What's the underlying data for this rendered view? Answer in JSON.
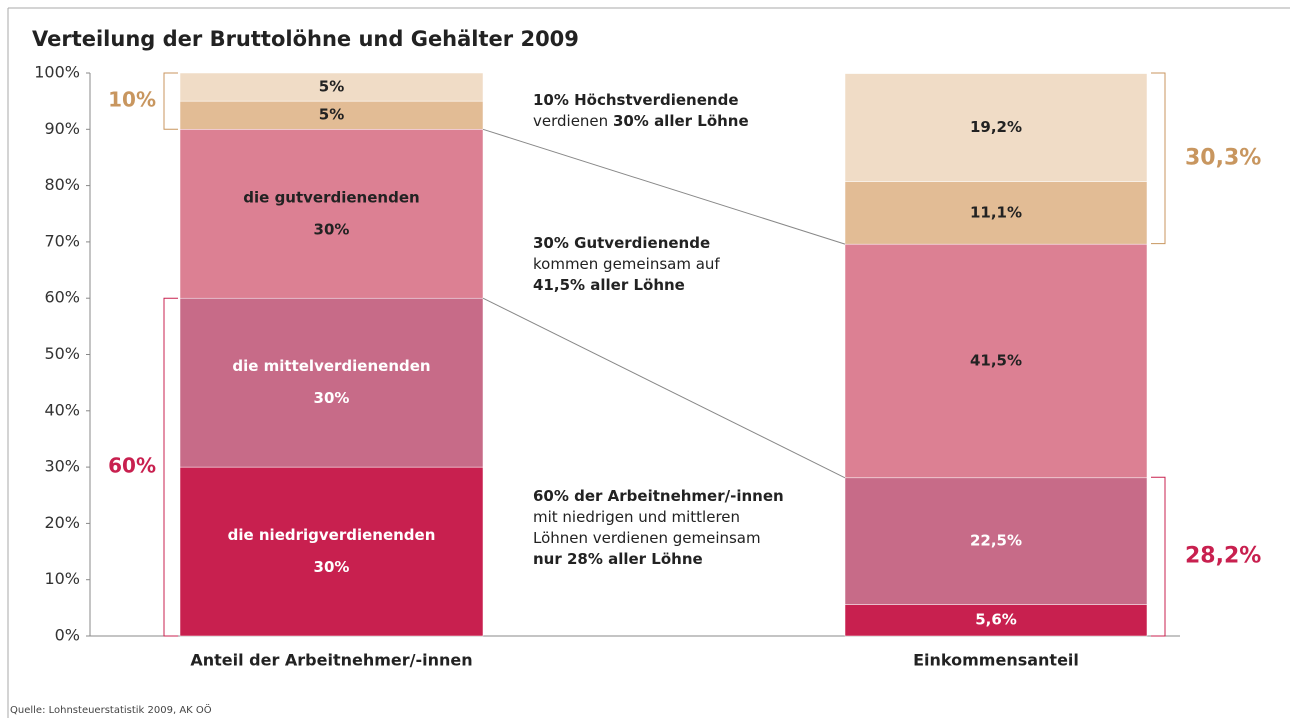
{
  "chart_data": {
    "type": "stacked-bar",
    "title": "Verteilung der Bruttolöhne und Gehälter 2009",
    "categories": [
      "Anteil der Arbeitnehmer/-innen",
      "Einkommensanteil"
    ],
    "series": [
      {
        "name": "die niedrigverdienenden",
        "color": "#c8204f",
        "label_color": "#ffffff",
        "values": [
          30,
          5.6
        ],
        "value_labels": [
          "30%",
          "5,6%"
        ]
      },
      {
        "name": "die mittelverdienenden",
        "color": "#c76b88",
        "label_color": "#ffffff",
        "values": [
          30,
          22.5
        ],
        "value_labels": [
          "30%",
          "22,5%"
        ]
      },
      {
        "name": "die gutverdienenden",
        "color": "#dc8093",
        "label_color": "#222222",
        "values": [
          30,
          41.5
        ],
        "value_labels": [
          "30%",
          "41,5%"
        ]
      },
      {
        "color": "#e2bc95",
        "label_color": "#222222",
        "values": [
          5,
          11.1
        ],
        "value_labels": [
          "5%",
          "11,1%"
        ]
      },
      {
        "color": "#f0dcc6",
        "label_color": "#222222",
        "values": [
          5,
          19.2
        ],
        "value_labels": [
          "5%",
          "19,2%"
        ]
      }
    ],
    "ylim": [
      0,
      100
    ],
    "yticks": [
      {
        "value": 0,
        "label": "0%"
      },
      {
        "value": 10,
        "label": "10%"
      },
      {
        "value": 20,
        "label": "20%"
      },
      {
        "value": 30,
        "label": "30%"
      },
      {
        "value": 40,
        "label": "40%"
      },
      {
        "value": 50,
        "label": "50%"
      },
      {
        "value": 60,
        "label": "60%"
      },
      {
        "value": 70,
        "label": "70%"
      },
      {
        "value": 80,
        "label": "80%"
      },
      {
        "value": 90,
        "label": "90%"
      },
      {
        "value": 100,
        "label": "100%"
      }
    ],
    "grid": false,
    "brackets": [
      [
        {
          "label": "10%",
          "value": 10,
          "anchor": "top",
          "color": "#c8965f"
        },
        {
          "label": "60%",
          "value": 60,
          "anchor": "bottom",
          "color": "#c8204f"
        }
      ],
      [
        {
          "label": "30,3%",
          "value": 30.3,
          "anchor": "top",
          "color": "#c8965f"
        },
        {
          "label": "28,2%",
          "value": 28.2,
          "anchor": "bottom",
          "color": "#c8204f"
        }
      ]
    ],
    "notes": [
      [
        [
          {
            "text": "10% Höchstverdienende",
            "bold": true
          }
        ],
        [
          {
            "text": "verdienen ",
            "bold": false
          },
          {
            "text": "30% aller Löhne",
            "bold": true
          }
        ]
      ],
      [
        [
          {
            "text": "30% Gutverdienende",
            "bold": true
          }
        ],
        [
          {
            "text": "kommen gemeinsam auf",
            "bold": false
          }
        ],
        [
          {
            "text": "41,5% aller Löhne",
            "bold": true
          }
        ]
      ],
      [
        [
          {
            "text": "60% der Arbeitnehmer/-innen",
            "bold": true
          }
        ],
        [
          {
            "text": "mit niedrigen und mittleren",
            "bold": false
          }
        ],
        [
          {
            "text": "Löhnen verdienen gemeinsam",
            "bold": false
          }
        ],
        [
          {
            "text": "nur 28% aller Löhne",
            "bold": true
          }
        ]
      ]
    ],
    "source": "Quelle: Lohnsteuerstatistik 2009, AK OÖ"
  }
}
